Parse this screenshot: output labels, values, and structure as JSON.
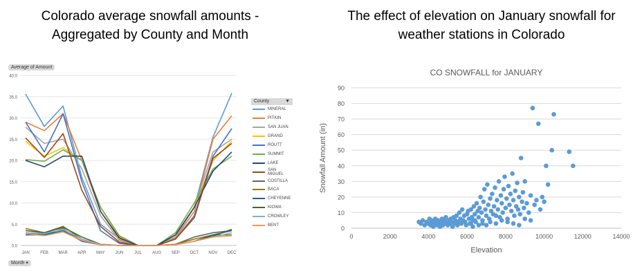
{
  "left_heading": {
    "line1": "Colorado average snowfall amounts -",
    "line2": "Aggregated by County and Month"
  },
  "right_heading": {
    "line1": "The effect of elevation on January snowfall for",
    "line2": "weather stations in Colorado"
  },
  "left_controls": {
    "value_pill": "Average of Amount",
    "axis_pill": "Month ▾",
    "legend_title": "County",
    "filter_icon": "filter-icon"
  },
  "chart_data": [
    {
      "type": "line",
      "title": "",
      "ylim": [
        0,
        40
      ],
      "yticks": [
        "0.0",
        "5.0",
        "10.0",
        "15.0",
        "20.0",
        "25.0",
        "30.0",
        "35.0",
        "40.0"
      ],
      "legend_placement": "right",
      "categories": [
        "JAN",
        "FEB",
        "MAR",
        "APR",
        "MAY",
        "JUN",
        "JUL",
        "AUG",
        "SEP",
        "OCT",
        "NOV",
        "DEC"
      ],
      "series": [
        {
          "name": "MINERAL",
          "color": "#5b9bd5",
          "values": [
            35.6,
            28.0,
            32.8,
            16.0,
            5.0,
            1.5,
            0,
            0,
            2.0,
            9.0,
            25.5,
            35.8
          ]
        },
        {
          "name": "PITKIN",
          "color": "#ed7d31",
          "values": [
            29.0,
            27.0,
            31.0,
            20.0,
            8.0,
            1.5,
            0,
            0,
            1.8,
            8.0,
            25.0,
            30.5
          ]
        },
        {
          "name": "SAN JUAN",
          "color": "#a5a5a5",
          "values": [
            27.8,
            24.0,
            25.0,
            18.0,
            7.0,
            1.2,
            0,
            0,
            2.0,
            9.0,
            22.0,
            25.0
          ]
        },
        {
          "name": "GRAND",
          "color": "#ffc000",
          "values": [
            24.5,
            21.0,
            23.0,
            20.0,
            9.0,
            2.0,
            0,
            0,
            2.5,
            9.0,
            20.0,
            24.5
          ]
        },
        {
          "name": "ROUTT",
          "color": "#4472c4",
          "values": [
            29.0,
            22.0,
            31.0,
            15.0,
            3.5,
            0.5,
            0,
            0,
            1.5,
            7.0,
            21.0,
            27.5
          ]
        },
        {
          "name": "SUMMIT",
          "color": "#70ad47",
          "values": [
            20.2,
            19.8,
            22.5,
            20.0,
            9.0,
            2.3,
            0,
            0,
            3.0,
            10.0,
            18.0,
            21.0
          ]
        },
        {
          "name": "LAKE",
          "color": "#264478",
          "values": [
            20.0,
            18.5,
            21.0,
            21.0,
            8.0,
            1.8,
            0,
            0,
            2.5,
            9.0,
            17.5,
            22.0
          ]
        },
        {
          "name": "SAN MIGUEL",
          "color": "#9e480e",
          "values": [
            25.3,
            20.7,
            26.3,
            13.0,
            4.5,
            0.8,
            0,
            0,
            1.5,
            6.5,
            20.5,
            24.0
          ]
        },
        {
          "name": "COSTILLA",
          "color": "#636363",
          "values": [
            3.0,
            2.5,
            4.0,
            1.0,
            0.2,
            0,
            0,
            0,
            0.3,
            2.0,
            3.0,
            3.5
          ]
        },
        {
          "name": "BACA",
          "color": "#997300",
          "values": [
            4.0,
            3.0,
            4.5,
            1.5,
            0.3,
            0,
            0,
            0,
            0.3,
            1.5,
            2.5,
            2.5
          ]
        },
        {
          "name": "CHEYENNE",
          "color": "#255e91",
          "values": [
            2.5,
            2.5,
            3.5,
            1.0,
            0.2,
            0,
            0,
            0,
            0.2,
            1.0,
            2.5,
            3.5
          ]
        },
        {
          "name": "KIOWA",
          "color": "#43682b",
          "values": [
            3.5,
            3.0,
            4.3,
            2.0,
            0.3,
            0,
            0,
            0,
            0.2,
            1.0,
            2.2,
            3.8
          ]
        },
        {
          "name": "CROWLEY",
          "color": "#7cafdd",
          "values": [
            3.0,
            2.8,
            3.8,
            1.5,
            0.3,
            0,
            0,
            0,
            0.2,
            1.0,
            2.0,
            3.0
          ]
        },
        {
          "name": "BENT",
          "color": "#f1975a",
          "values": [
            2.8,
            2.3,
            3.2,
            1.2,
            0.2,
            0,
            0,
            0,
            0.2,
            1.0,
            2.0,
            2.3
          ]
        }
      ]
    },
    {
      "type": "scatter",
      "title": "CO SNOWFALL for JANUARY",
      "xlabel": "Elevation",
      "ylabel": "Snowfall Amount (in)",
      "xlim": [
        0,
        14000
      ],
      "ylim": [
        0,
        90
      ],
      "xticks": [
        "0",
        "2000",
        "4000",
        "6000",
        "8000",
        "10000",
        "12000",
        "14000"
      ],
      "yticks": [
        "0",
        "10",
        "20",
        "30",
        "40",
        "50",
        "60",
        "70",
        "80",
        "90"
      ],
      "grid": "horizontal",
      "color": "#5b9bd5",
      "points": [
        [
          3500,
          4
        ],
        [
          3600,
          3
        ],
        [
          3700,
          5
        ],
        [
          3800,
          2
        ],
        [
          3900,
          4
        ],
        [
          4000,
          3
        ],
        [
          4050,
          6
        ],
        [
          4100,
          2
        ],
        [
          4150,
          5
        ],
        [
          4200,
          4
        ],
        [
          4250,
          1
        ],
        [
          4300,
          3
        ],
        [
          4350,
          6
        ],
        [
          4400,
          4
        ],
        [
          4450,
          2
        ],
        [
          4500,
          5
        ],
        [
          4550,
          3
        ],
        [
          4600,
          1
        ],
        [
          4650,
          4
        ],
        [
          4700,
          6
        ],
        [
          4750,
          2
        ],
        [
          4800,
          5
        ],
        [
          4850,
          3
        ],
        [
          4900,
          7
        ],
        [
          4950,
          4
        ],
        [
          5000,
          2
        ],
        [
          5050,
          5
        ],
        [
          5100,
          3
        ],
        [
          5150,
          6
        ],
        [
          5200,
          4
        ],
        [
          5250,
          1
        ],
        [
          5300,
          7
        ],
        [
          5350,
          3
        ],
        [
          5400,
          5
        ],
        [
          5450,
          8
        ],
        [
          5500,
          2
        ],
        [
          5550,
          4
        ],
        [
          5600,
          10
        ],
        [
          5650,
          6
        ],
        [
          5700,
          3
        ],
        [
          5750,
          12
        ],
        [
          5800,
          5
        ],
        [
          5850,
          8
        ],
        [
          5900,
          4
        ],
        [
          5950,
          2
        ],
        [
          6000,
          9
        ],
        [
          6050,
          11
        ],
        [
          6100,
          6
        ],
        [
          6150,
          3
        ],
        [
          6200,
          12
        ],
        [
          6250,
          7
        ],
        [
          6300,
          5
        ],
        [
          6350,
          14
        ],
        [
          6400,
          9
        ],
        [
          6450,
          4
        ],
        [
          6500,
          16
        ],
        [
          6550,
          11
        ],
        [
          6600,
          7
        ],
        [
          6650,
          13
        ],
        [
          6700,
          20
        ],
        [
          6750,
          10
        ],
        [
          6800,
          5
        ],
        [
          6850,
          17
        ],
        [
          6900,
          25
        ],
        [
          6950,
          12
        ],
        [
          7000,
          8
        ],
        [
          7050,
          28
        ],
        [
          7100,
          15
        ],
        [
          7150,
          6
        ],
        [
          7200,
          19
        ],
        [
          7250,
          11
        ],
        [
          7300,
          22
        ],
        [
          7350,
          9
        ],
        [
          7400,
          14
        ],
        [
          7450,
          26
        ],
        [
          7500,
          8
        ],
        [
          7550,
          18
        ],
        [
          7600,
          12
        ],
        [
          7650,
          30
        ],
        [
          7700,
          7
        ],
        [
          7750,
          21
        ],
        [
          7800,
          16
        ],
        [
          7850,
          10
        ],
        [
          7900,
          25
        ],
        [
          7950,
          33
        ],
        [
          8000,
          13
        ],
        [
          8050,
          19
        ],
        [
          8100,
          6
        ],
        [
          8150,
          27
        ],
        [
          8200,
          15
        ],
        [
          8250,
          22
        ],
        [
          8300,
          11
        ],
        [
          8350,
          35
        ],
        [
          8400,
          18
        ],
        [
          8450,
          8
        ],
        [
          8500,
          24
        ],
        [
          8550,
          14
        ],
        [
          8600,
          29
        ],
        [
          8650,
          12
        ],
        [
          8700,
          20
        ],
        [
          8750,
          9
        ],
        [
          8800,
          45
        ],
        [
          8850,
          17
        ],
        [
          8900,
          23
        ],
        [
          8950,
          13
        ],
        [
          9000,
          30
        ],
        [
          9100,
          16
        ],
        [
          9200,
          10
        ],
        [
          9300,
          21
        ],
        [
          9400,
          77
        ],
        [
          9500,
          15
        ],
        [
          9600,
          18
        ],
        [
          9700,
          67
        ],
        [
          9800,
          12
        ],
        [
          9900,
          20
        ],
        [
          10000,
          17
        ],
        [
          10100,
          40
        ],
        [
          10200,
          28
        ],
        [
          10400,
          50
        ],
        [
          10500,
          73
        ],
        [
          11300,
          49
        ],
        [
          11500,
          40
        ],
        [
          6200,
          3
        ],
        [
          6300,
          1
        ],
        [
          6400,
          5
        ],
        [
          6600,
          2
        ],
        [
          6800,
          3
        ],
        [
          7000,
          2
        ],
        [
          7200,
          4
        ],
        [
          7500,
          3
        ],
        [
          7800,
          5
        ],
        [
          8100,
          4
        ],
        [
          8400,
          3
        ],
        [
          8700,
          2
        ],
        [
          9000,
          6
        ],
        [
          9300,
          5
        ]
      ]
    }
  ]
}
